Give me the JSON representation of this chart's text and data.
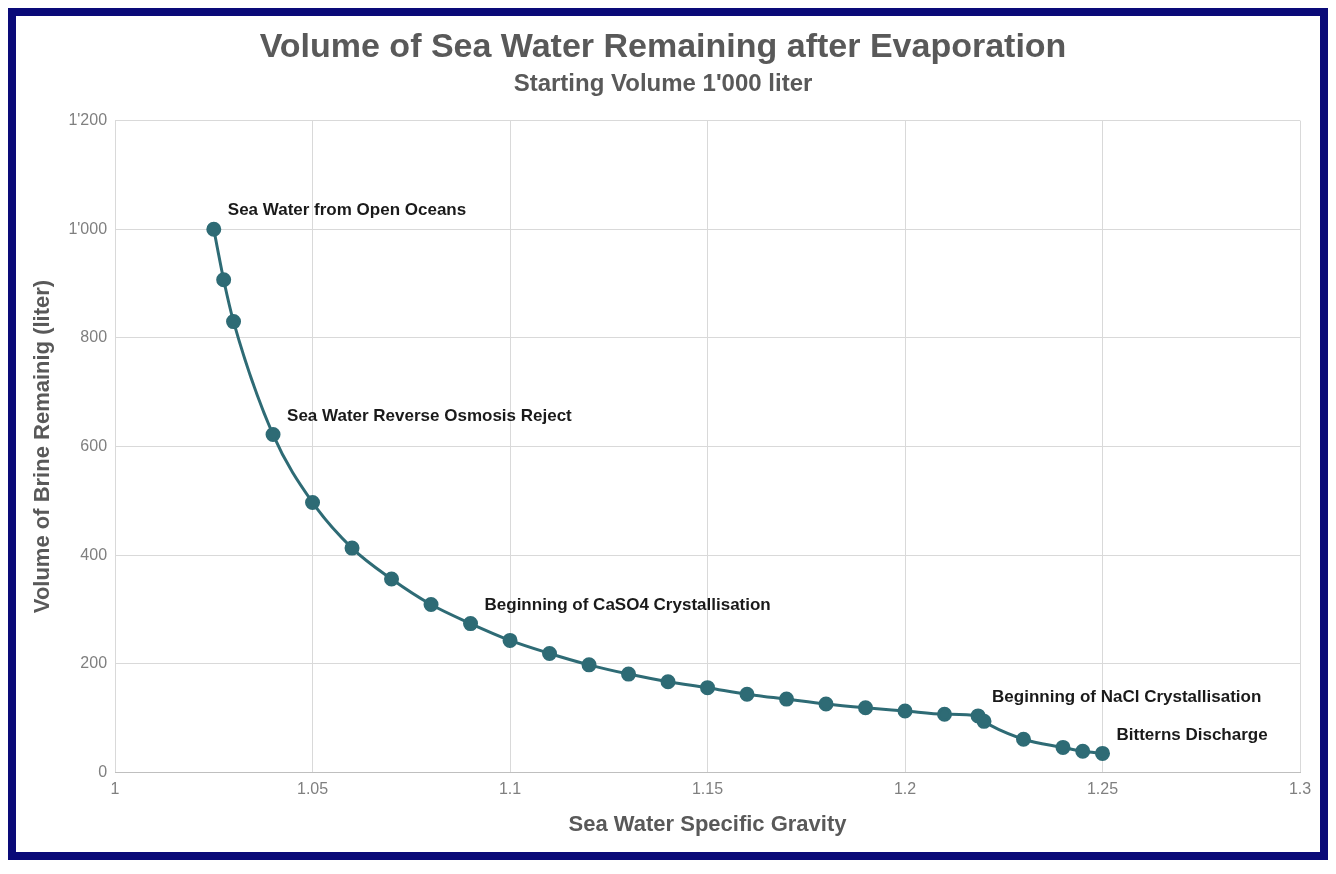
{
  "chart_data": {
    "type": "line",
    "title": "Volume of Sea Water Remaining after Evaporation",
    "subtitle": "Starting Volume 1'000 liter",
    "xlabel": "Sea Water Specific Gravity",
    "ylabel": "Volume of Brine Remainig (liter)",
    "x": [
      1.025,
      1.0275,
      1.03,
      1.04,
      1.05,
      1.06,
      1.07,
      1.08,
      1.09,
      1.1,
      1.11,
      1.12,
      1.13,
      1.14,
      1.15,
      1.16,
      1.17,
      1.18,
      1.19,
      1.2,
      1.21,
      1.2185,
      1.22,
      1.23,
      1.24,
      1.245,
      1.25
    ],
    "series": [
      {
        "color": "#2e6b75",
        "values": [
          1000,
          907,
          830,
          622,
          497,
          413,
          356,
          309,
          274,
          243,
          219,
          198,
          181,
          167,
          156,
          144,
          135,
          126,
          119,
          113,
          107,
          104,
          94,
          61,
          46,
          39,
          35
        ]
      }
    ],
    "xlim": [
      1,
      1.3
    ],
    "xticks": [
      1,
      1.05,
      1.1,
      1.15,
      1.2,
      1.25,
      1.3
    ],
    "ylim": [
      0,
      1200
    ],
    "yticks": [
      0,
      200,
      400,
      600,
      800,
      {
        "value": 1000,
        "label": "1'000"
      },
      {
        "value": 1200,
        "label": "1'200"
      }
    ],
    "grid": true,
    "marker": "circle",
    "line_style": "solid",
    "legend": false,
    "annotations": [
      {
        "text": "Sea Water from Open Oceans",
        "x": 1.025,
        "y": 1000
      },
      {
        "text": "Sea Water Reverse Osmosis Reject",
        "x": 1.04,
        "y": 622
      },
      {
        "text": "Beginning of CaSO4 Crystallisation",
        "x": 1.09,
        "y": 274
      },
      {
        "text": "Beginning of NaCl Crystallisation",
        "x": 1.2185,
        "y": 104
      },
      {
        "text": "Bitterns Discharge",
        "x": 1.25,
        "y": 35
      }
    ]
  }
}
